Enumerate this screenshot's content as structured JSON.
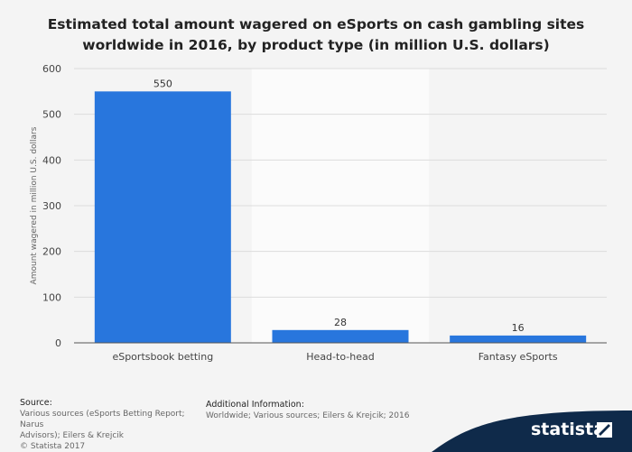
{
  "title_line1": "Estimated total amount wagered on eSports on cash gambling sites",
  "title_line2": "worldwide in 2016, by product type (in million U.S. dollars)",
  "chart_data": {
    "type": "bar",
    "categories": [
      "eSportsbook betting",
      "Head-to-head",
      "Fantasy eSports"
    ],
    "values": [
      550,
      28,
      16
    ],
    "data_labels": [
      "550",
      "28",
      "16"
    ],
    "title": "Estimated total amount wagered on eSports on cash gambling sites worldwide in 2016, by product type (in million U.S. dollars)",
    "xlabel": "",
    "ylabel": "Amount wagered in million U.S. dollars",
    "ylim": [
      0,
      600
    ],
    "yticks": [
      0,
      100,
      200,
      300,
      400,
      500,
      600
    ],
    "grid": true,
    "bar_color": "#2876dd"
  },
  "footer": {
    "source_heading": "Source:",
    "source_line1": "Various sources (eSports Betting Report; Narus",
    "source_line2": "Advisors); Eilers & Krejcik",
    "source_line3": "© Statista 2017",
    "additional_heading": "Additional Information:",
    "additional_line1": "Worldwide; Various sources; Eilers & Krejcik; 2016"
  },
  "brand": {
    "name": "statista",
    "color": "#0f2a4a"
  }
}
